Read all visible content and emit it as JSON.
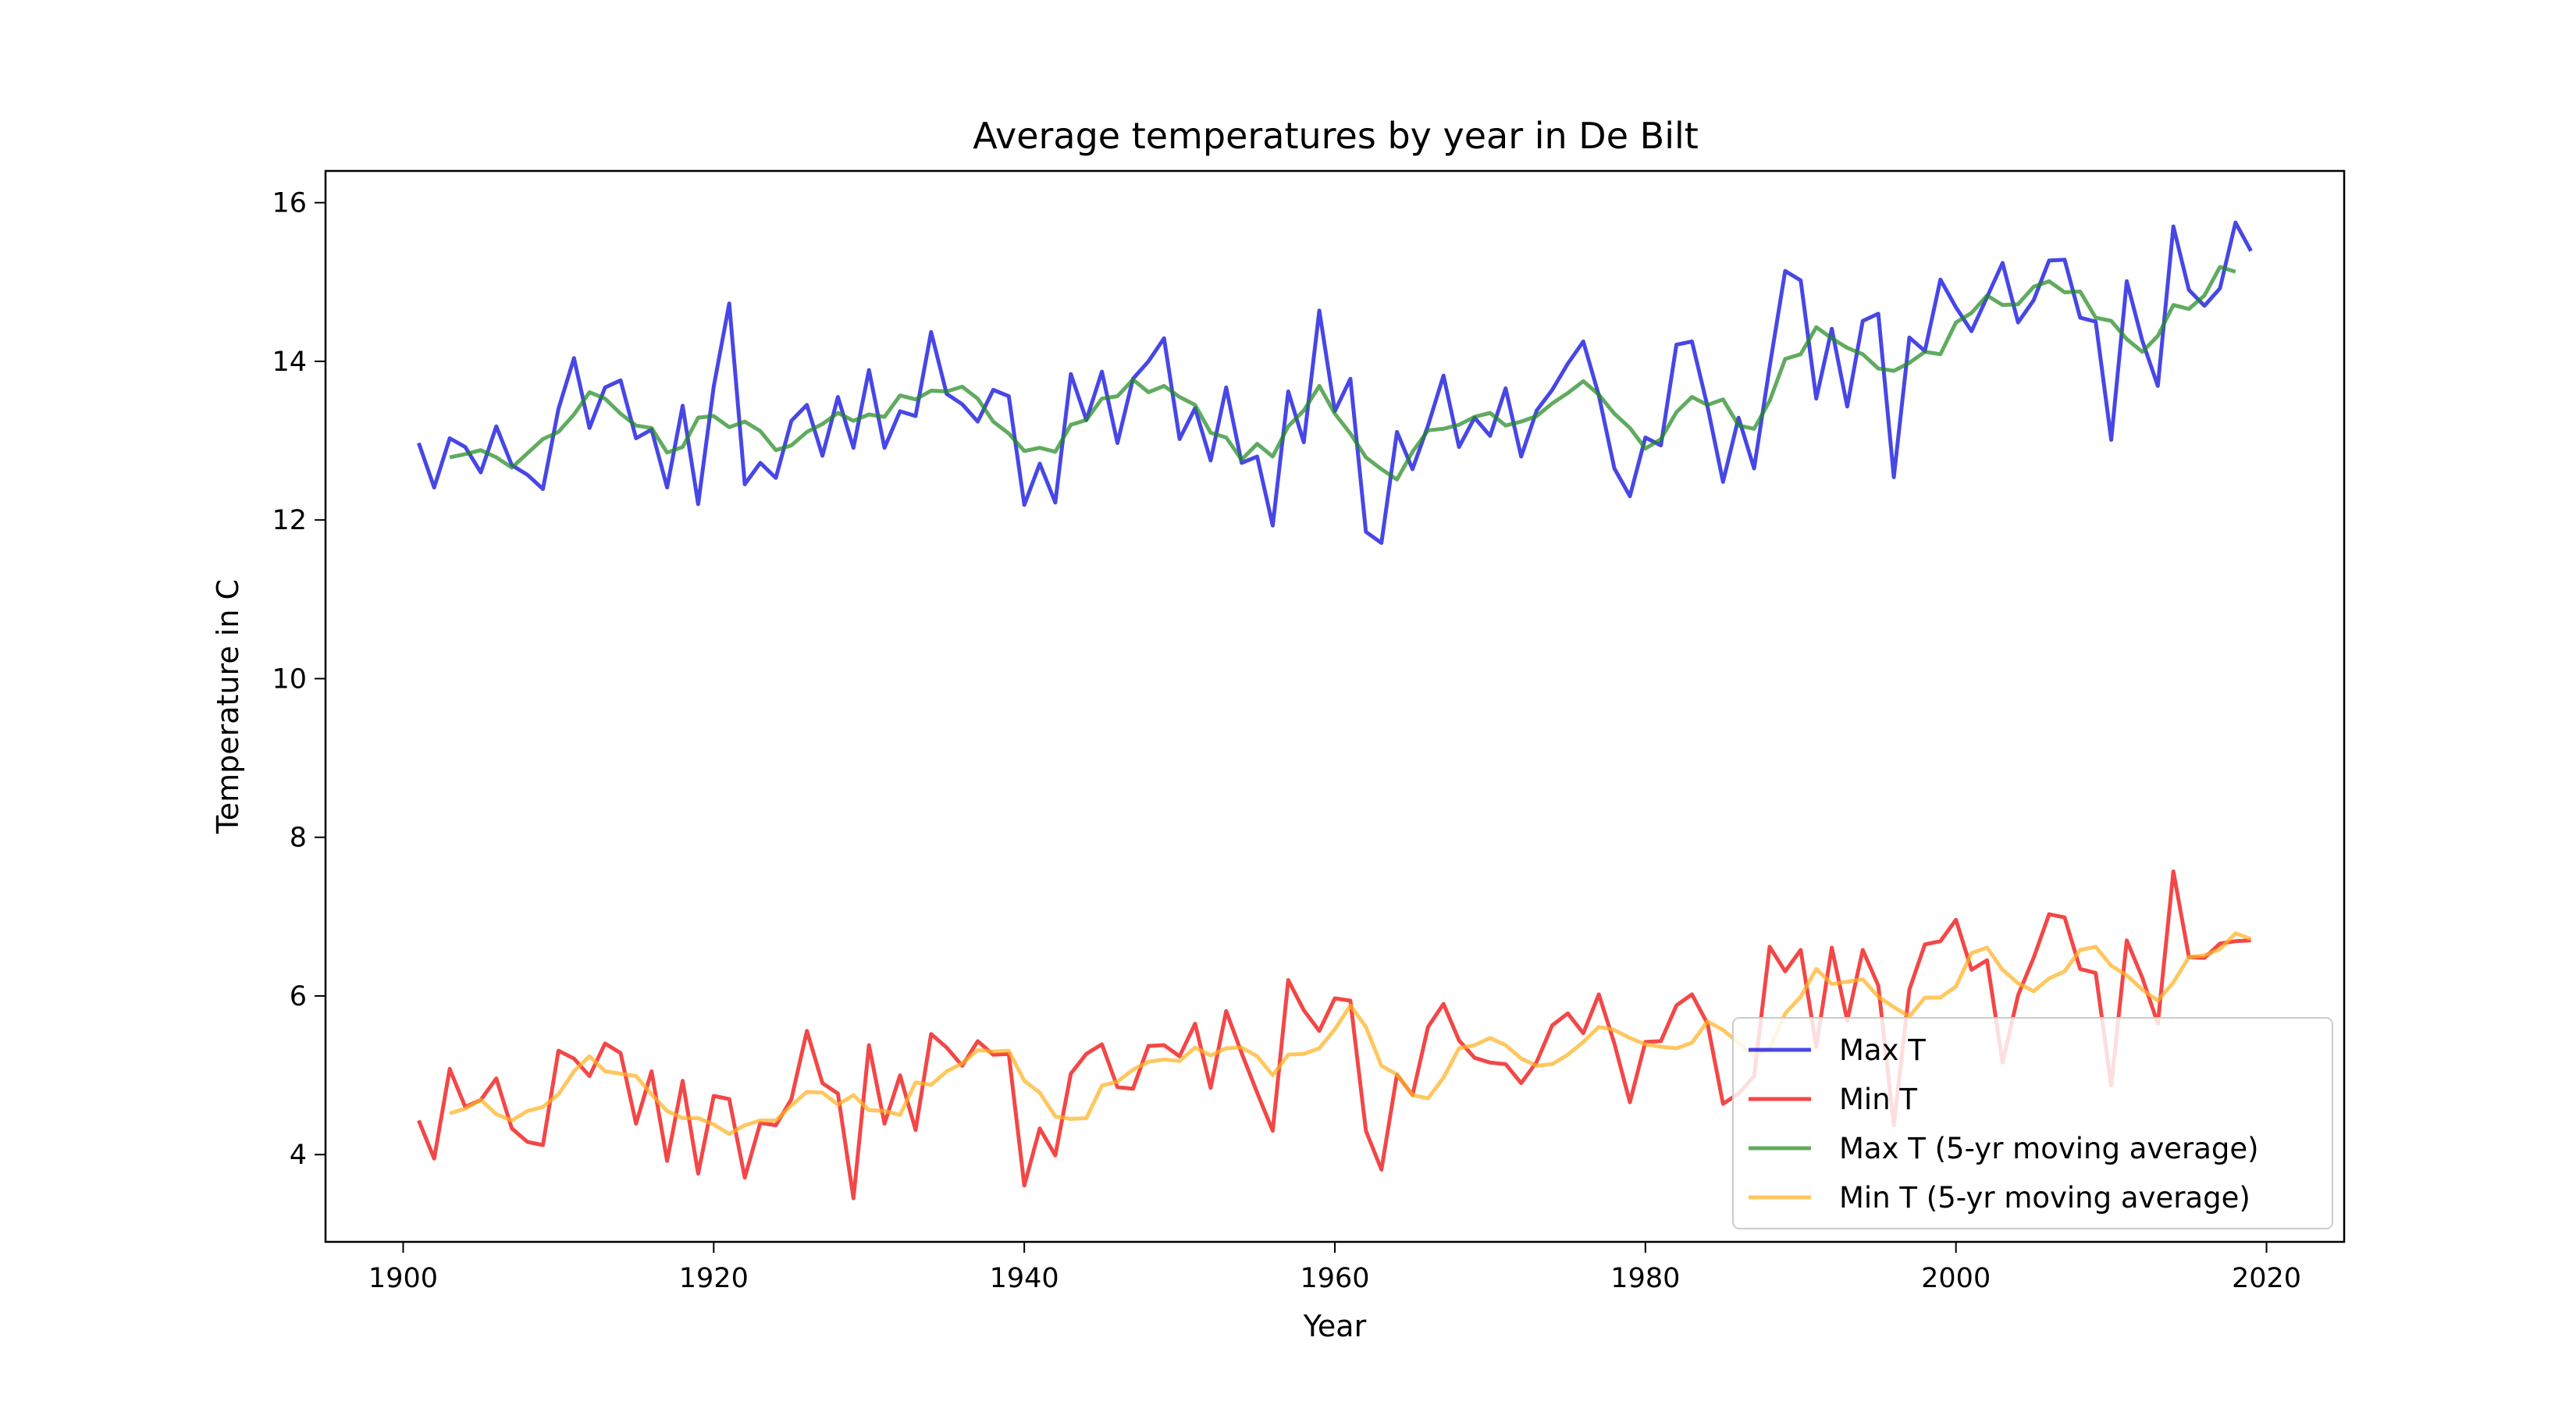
{
  "chart_data": {
    "type": "line",
    "title": "Average temperatures by year in De Bilt",
    "xlabel": "Year",
    "ylabel": "Temperature in C",
    "xlim": [
      1895,
      2025
    ],
    "ylim": [
      2.9,
      16.4
    ],
    "xticks": [
      1900,
      1920,
      1940,
      1960,
      1980,
      2000,
      2020
    ],
    "yticks": [
      4,
      6,
      8,
      10,
      12,
      14,
      16
    ],
    "grid": false,
    "legend_position": "bottom-right",
    "series": [
      {
        "name": "Max T",
        "color": "#0000dd",
        "x_start": 1901,
        "values": [
          12.97,
          12.41,
          13.03,
          12.92,
          12.6,
          13.18,
          12.69,
          12.57,
          12.39,
          13.4,
          14.04,
          13.16,
          13.67,
          13.76,
          13.03,
          13.14,
          12.41,
          13.44,
          12.2,
          13.68,
          14.73,
          12.45,
          12.72,
          12.53,
          13.25,
          13.45,
          12.81,
          13.55,
          12.91,
          13.89,
          12.91,
          13.37,
          13.31,
          14.37,
          13.59,
          13.46,
          13.24,
          13.64,
          13.56,
          12.19,
          12.71,
          12.22,
          13.84,
          13.26,
          13.87,
          12.97,
          13.78,
          14.0,
          14.29,
          13.02,
          13.41,
          12.75,
          13.67,
          12.72,
          12.8,
          11.93,
          13.62,
          12.98,
          14.64,
          13.37,
          13.78,
          11.85,
          11.71,
          13.11,
          12.64,
          13.19,
          13.82,
          12.92,
          13.29,
          13.06,
          13.66,
          12.8,
          13.38,
          13.64,
          13.97,
          14.25,
          13.57,
          12.65,
          12.3,
          13.04,
          12.94,
          14.21,
          14.25,
          13.43,
          12.48,
          13.29,
          12.65,
          13.93,
          15.14,
          15.02,
          13.53,
          14.41,
          13.43,
          14.51,
          14.6,
          12.54,
          14.3,
          14.13,
          15.03,
          14.68,
          14.38,
          14.81,
          15.24,
          14.49,
          14.77,
          15.27,
          15.28,
          14.55,
          14.5,
          13.01,
          15.01,
          14.26,
          13.69,
          15.7,
          14.9,
          14.7,
          14.92,
          15.75,
          15.39
        ]
      },
      {
        "name": "Min T",
        "color": "#ee0000",
        "x_start": 1901,
        "values": [
          4.43,
          3.95,
          5.08,
          4.6,
          4.69,
          4.96,
          4.33,
          4.16,
          4.12,
          5.31,
          5.21,
          4.99,
          5.4,
          5.28,
          4.39,
          5.05,
          3.92,
          4.93,
          3.76,
          4.74,
          4.7,
          3.71,
          4.4,
          4.37,
          4.7,
          5.56,
          4.9,
          4.77,
          3.45,
          5.38,
          4.39,
          5.0,
          4.31,
          5.52,
          5.35,
          5.12,
          5.43,
          5.26,
          5.27,
          3.61,
          4.33,
          3.99,
          5.02,
          5.27,
          5.39,
          4.85,
          4.83,
          5.37,
          5.38,
          5.24,
          5.65,
          4.84,
          5.81,
          5.28,
          4.78,
          4.3,
          6.2,
          5.82,
          5.56,
          5.97,
          5.94,
          4.3,
          3.81,
          5.01,
          4.75,
          5.61,
          5.9,
          5.44,
          5.22,
          5.16,
          5.14,
          4.9,
          5.17,
          5.63,
          5.78,
          5.53,
          6.02,
          5.4,
          4.66,
          5.42,
          5.43,
          5.88,
          6.02,
          5.65,
          4.64,
          4.77,
          4.99,
          6.62,
          6.31,
          6.58,
          5.36,
          6.61,
          5.69,
          6.58,
          6.13,
          4.37,
          6.08,
          6.65,
          6.69,
          6.96,
          6.33,
          6.45,
          5.16,
          6.01,
          6.48,
          7.03,
          6.99,
          6.34,
          6.29,
          4.87,
          6.7,
          6.23,
          5.65,
          7.57,
          6.49,
          6.48,
          6.66,
          6.69,
          6.7
        ]
      },
      {
        "name": "Max T (5-yr moving average)",
        "color": "#228b22",
        "x_start": 1903,
        "values": [
          12.79,
          12.83,
          12.88,
          12.79,
          12.66,
          12.84,
          13.02,
          13.11,
          13.33,
          13.61,
          13.53,
          13.34,
          13.19,
          13.16,
          12.85,
          12.92,
          13.29,
          13.31,
          13.17,
          13.24,
          13.12,
          12.88,
          12.94,
          13.11,
          13.21,
          13.35,
          13.25,
          13.33,
          13.3,
          13.57,
          13.52,
          13.63,
          13.62,
          13.68,
          13.53,
          13.24,
          13.09,
          12.87,
          12.91,
          12.86,
          13.2,
          13.26,
          13.53,
          13.56,
          13.77,
          13.61,
          13.69,
          13.55,
          13.45,
          13.1,
          13.04,
          12.76,
          12.96,
          12.8,
          13.18,
          13.38,
          13.69,
          13.34,
          13.09,
          12.79,
          12.64,
          12.51,
          12.86,
          13.13,
          13.15,
          13.2,
          13.3,
          13.35,
          13.19,
          13.24,
          13.31,
          13.47,
          13.6,
          13.75,
          13.58,
          13.34,
          13.16,
          12.9,
          13.02,
          13.36,
          13.55,
          13.45,
          13.52,
          13.19,
          13.15,
          13.5,
          14.03,
          14.09,
          14.43,
          14.29,
          14.17,
          14.09,
          13.91,
          13.88,
          13.98,
          14.12,
          14.09,
          14.49,
          14.61,
          14.83,
          14.71,
          14.72,
          14.94,
          15.01,
          14.87,
          14.88,
          14.55,
          14.51,
          14.28,
          14.12,
          14.32,
          14.71,
          14.66,
          14.83,
          15.19,
          15.13
        ]
      },
      {
        "name": "Min T (5-yr moving average)",
        "color": "#ffb122",
        "x_start": 1903,
        "values": [
          4.52,
          4.58,
          4.69,
          4.51,
          4.43,
          4.55,
          4.6,
          4.76,
          5.05,
          5.24,
          5.05,
          5.02,
          4.99,
          4.76,
          4.55,
          4.46,
          4.46,
          4.38,
          4.26,
          4.37,
          4.43,
          4.43,
          4.62,
          4.79,
          4.78,
          4.63,
          4.75,
          4.56,
          4.55,
          4.5,
          4.91,
          4.88,
          5.05,
          5.15,
          5.32,
          5.3,
          5.31,
          4.93,
          4.78,
          4.48,
          4.45,
          4.46,
          4.87,
          4.92,
          5.07,
          5.17,
          5.2,
          5.18,
          5.35,
          5.25,
          5.34,
          5.35,
          5.24,
          5.0,
          5.26,
          5.27,
          5.34,
          5.58,
          5.88,
          5.61,
          5.12,
          5.01,
          4.75,
          4.71,
          4.97,
          5.34,
          5.38,
          5.47,
          5.38,
          5.21,
          5.12,
          5.14,
          5.26,
          5.42,
          5.61,
          5.57,
          5.47,
          5.39,
          5.36,
          5.34,
          5.41,
          5.68,
          5.57,
          5.41,
          5.25,
          5.34,
          5.78,
          5.99,
          6.34,
          6.15,
          6.18,
          6.21,
          5.99,
          5.86,
          5.74,
          5.98,
          5.98,
          6.12,
          6.54,
          6.61,
          6.33,
          6.16,
          6.06,
          6.22,
          6.31,
          6.58,
          6.62,
          6.38,
          6.26,
          6.08,
          5.94,
          6.17,
          6.49,
          6.51,
          6.59,
          6.79,
          6.72
        ]
      }
    ]
  }
}
